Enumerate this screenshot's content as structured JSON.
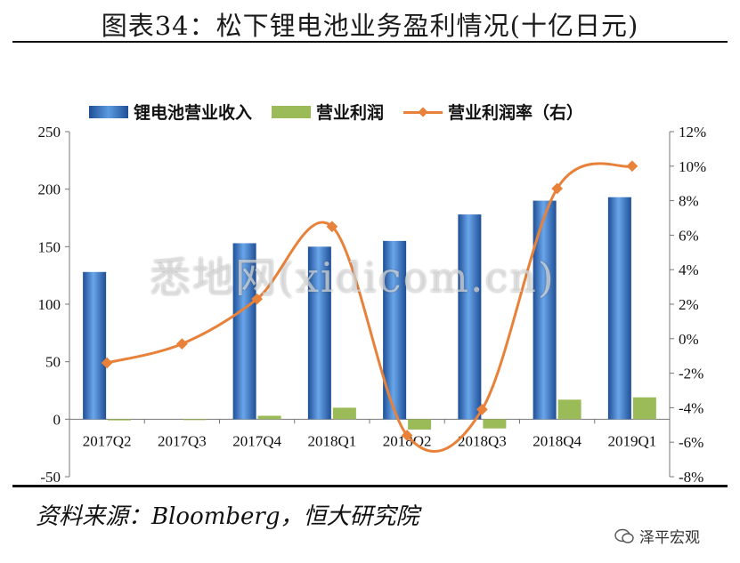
{
  "title": "图表34：松下锂电池业务盈利情况(十亿日元)",
  "source": "资料来源：Bloomberg，恒大研究院",
  "watermark": "悉地网(xidicom.cn)",
  "brand": "泽平宏观",
  "colors": {
    "bar_revenue": "#3f7fcb",
    "bar_profit": "#9bbb59",
    "line_margin": "#e8823b"
  },
  "chart_data": {
    "type": "bar",
    "categories": [
      "2017Q2",
      "2017Q3",
      "2017Q4",
      "2018Q1",
      "2018Q2",
      "2018Q3",
      "2018Q4",
      "2019Q1"
    ],
    "series": [
      {
        "name": "锂电池营业收入",
        "type": "bar",
        "axis": "left",
        "values": [
          128,
          0,
          153,
          150,
          155,
          178,
          190,
          193
        ]
      },
      {
        "name": "营业利润",
        "type": "bar",
        "axis": "left",
        "values": [
          -1,
          0,
          3,
          10,
          -9,
          -8,
          17,
          19
        ]
      },
      {
        "name": "营业利润率（右）",
        "type": "line",
        "axis": "right",
        "values": [
          -1.4,
          -0.3,
          2.3,
          6.5,
          -5.6,
          -4.1,
          8.7,
          10.0
        ]
      }
    ],
    "y_left": {
      "min": -50,
      "max": 250,
      "step": 50,
      "ticks": [
        "-50",
        "0",
        "50",
        "100",
        "150",
        "200",
        "250"
      ]
    },
    "y_right": {
      "min": -8,
      "max": 12,
      "step": 2,
      "ticks": [
        "-8%",
        "-6%",
        "-4%",
        "-2%",
        "0%",
        "2%",
        "4%",
        "6%",
        "8%",
        "10%",
        "12%"
      ]
    },
    "legend_position": "top",
    "grid": false
  }
}
